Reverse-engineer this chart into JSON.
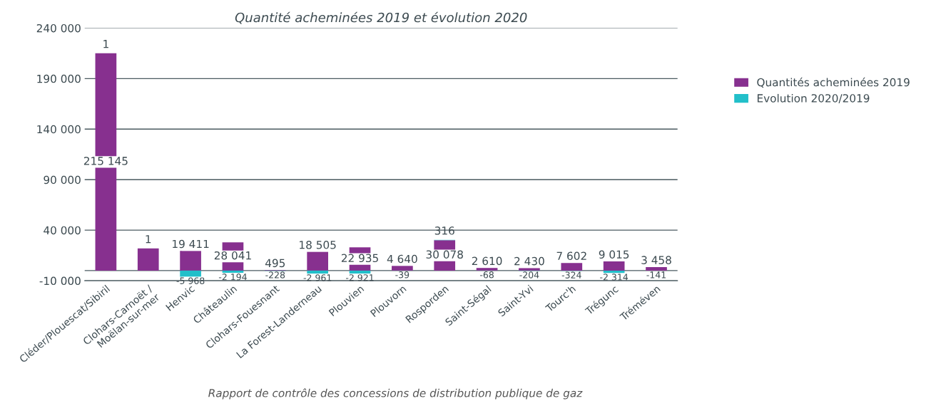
{
  "chart_data": {
    "type": "bar",
    "title": "Quantité acheminées 2019 et évolution 2020",
    "categories": [
      "Cléder/Plouescat/Sibiril",
      "Clohars-Carnoët /\nMoëlan-sur-mer",
      "Henvic",
      "Châteaulin",
      "Clohars-Fouesnant",
      "La Forest-Landerneau",
      "Plouvien",
      "Plouvorn",
      "Rosporden",
      "Saint-Ségal",
      "Saint-Yvi",
      "Tourc'h",
      "Trégunc",
      "Tréméven"
    ],
    "series": [
      {
        "name": "Quantités acheminées 2019",
        "color": "#87308f",
        "values": [
          215145,
          22000,
          19411,
          28041,
          495,
          18505,
          22935,
          4640,
          30078,
          2610,
          2430,
          7602,
          9015,
          3458
        ],
        "value_labels": [
          "215 145",
          null,
          "19 411",
          "28 041",
          "495",
          "18 505",
          "22 935",
          "4 640",
          "30 078",
          "2 610",
          "2 430",
          "7 602",
          "9 015",
          "3 458"
        ]
      },
      {
        "name": "Evolution 2020/2019",
        "color": "#22bfc9",
        "values": [
          1,
          1,
          -5968,
          -2194,
          -228,
          -2961,
          -2921,
          -39,
          316,
          -68,
          -204,
          -324,
          -2314,
          -141
        ],
        "value_labels": [
          "1",
          "1",
          "-5 968",
          "-2 194",
          "-228",
          "-2 961",
          "-2 921",
          "-39",
          "316",
          "-68",
          "-204",
          "-324",
          "-2 314",
          "-141"
        ]
      }
    ],
    "stacked": true,
    "ylim": [
      -10000,
      240000
    ],
    "ref_lines": [
      {
        "axis": "y",
        "value": 0
      }
    ],
    "yticks": [
      {
        "value": -10000,
        "label": "-10 000"
      },
      {
        "value": 40000,
        "label": "40 000"
      },
      {
        "value": 90000,
        "label": "90 000"
      },
      {
        "value": 140000,
        "label": "140 000"
      },
      {
        "value": 190000,
        "label": "190 000"
      },
      {
        "value": 240000,
        "label": "240 000"
      }
    ],
    "grid": "y",
    "legend": "right",
    "annotations": [
      "Rapport de contrôle des concessions de distribution publique de gaz"
    ]
  }
}
